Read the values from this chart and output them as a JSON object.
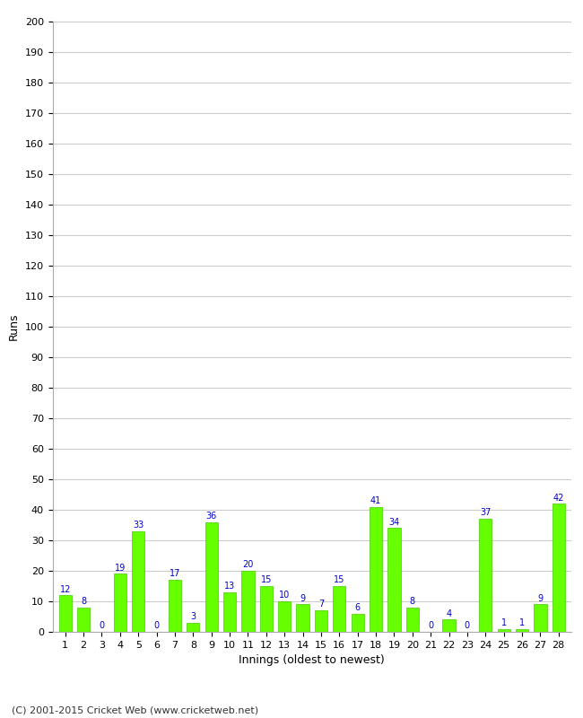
{
  "categories": [
    1,
    2,
    3,
    4,
    5,
    6,
    7,
    8,
    9,
    10,
    11,
    12,
    13,
    14,
    15,
    16,
    17,
    18,
    19,
    20,
    21,
    22,
    23,
    24,
    25,
    26,
    27,
    28
  ],
  "values": [
    12,
    8,
    0,
    19,
    33,
    0,
    17,
    3,
    36,
    13,
    20,
    15,
    10,
    9,
    7,
    15,
    6,
    41,
    34,
    8,
    0,
    4,
    0,
    37,
    1,
    1,
    9,
    42
  ],
  "bar_color": "#66ff00",
  "bar_edge_color": "#44cc00",
  "label_color": "#0000cc",
  "xlabel": "Innings (oldest to newest)",
  "ylabel": "Runs",
  "ylim": [
    0,
    200
  ],
  "yticks": [
    0,
    10,
    20,
    30,
    40,
    50,
    60,
    70,
    80,
    90,
    100,
    110,
    120,
    130,
    140,
    150,
    160,
    170,
    180,
    190,
    200
  ],
  "footer": "(C) 2001-2015 Cricket Web (www.cricketweb.net)",
  "background_color": "#ffffff",
  "grid_color": "#cccccc"
}
